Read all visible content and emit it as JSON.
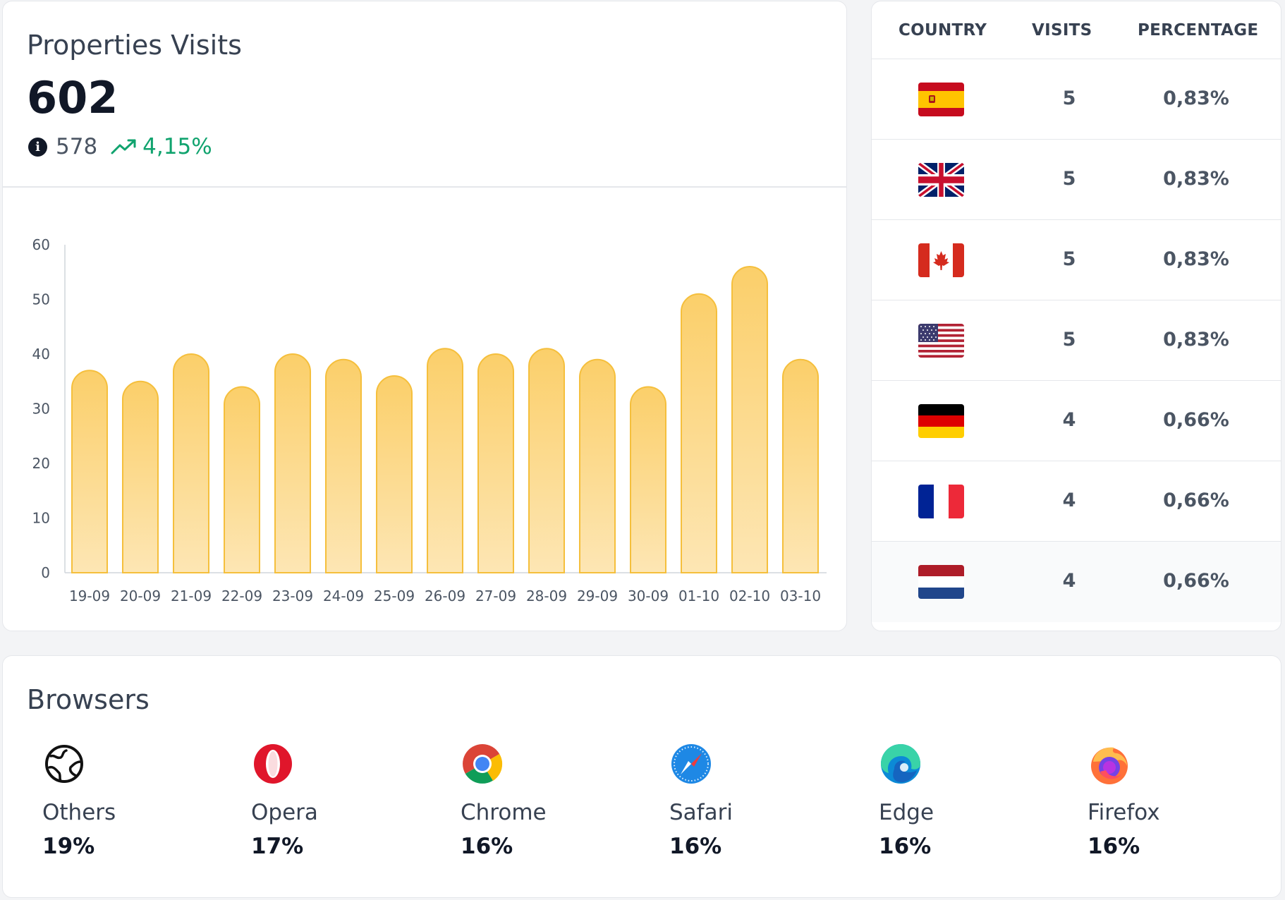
{
  "visits": {
    "title": "Properties Visits",
    "total": "602",
    "previous": "578",
    "change": "4,15%",
    "trend": "up",
    "colors": {
      "bar": "#fbcf6a",
      "bar_stroke": "#f5bf3c",
      "change": "#10a36e"
    }
  },
  "chart_data": {
    "type": "bar",
    "categories": [
      "19-09",
      "20-09",
      "21-09",
      "22-09",
      "23-09",
      "24-09",
      "25-09",
      "26-09",
      "27-09",
      "28-09",
      "29-09",
      "30-09",
      "01-10",
      "02-10",
      "03-10"
    ],
    "values": [
      37,
      35,
      40,
      34,
      40,
      39,
      36,
      41,
      40,
      41,
      39,
      34,
      51,
      56,
      39
    ],
    "ylim": [
      0,
      60
    ],
    "yticks": [
      "0",
      "10",
      "20",
      "30",
      "40",
      "50",
      "60"
    ],
    "title": "",
    "xlabel": "",
    "ylabel": "",
    "grid": false,
    "legend": "none"
  },
  "countries": {
    "headers": {
      "country": "COUNTRY",
      "visits": "VISITS",
      "percentage": "PERCENTAGE"
    },
    "rows": [
      {
        "flag": "spain-flag",
        "visits": "5",
        "percentage": "0,83%"
      },
      {
        "flag": "united-kingdom-flag",
        "visits": "5",
        "percentage": "0,83%"
      },
      {
        "flag": "canada-flag",
        "visits": "5",
        "percentage": "0,83%"
      },
      {
        "flag": "united-states-flag",
        "visits": "5",
        "percentage": "0,83%"
      },
      {
        "flag": "germany-flag",
        "visits": "4",
        "percentage": "0,66%"
      },
      {
        "flag": "france-flag",
        "visits": "4",
        "percentage": "0,66%"
      },
      {
        "flag": "netherlands-flag",
        "visits": "4",
        "percentage": "0,66%"
      }
    ]
  },
  "browsers": {
    "title": "Browsers",
    "items": [
      {
        "name": "Others",
        "percent": "19%",
        "icon": "globe-icon"
      },
      {
        "name": "Opera",
        "percent": "17%",
        "icon": "opera-icon"
      },
      {
        "name": "Chrome",
        "percent": "16%",
        "icon": "chrome-icon"
      },
      {
        "name": "Safari",
        "percent": "16%",
        "icon": "safari-icon"
      },
      {
        "name": "Edge",
        "percent": "16%",
        "icon": "edge-icon"
      },
      {
        "name": "Firefox",
        "percent": "16%",
        "icon": "firefox-icon"
      }
    ]
  }
}
